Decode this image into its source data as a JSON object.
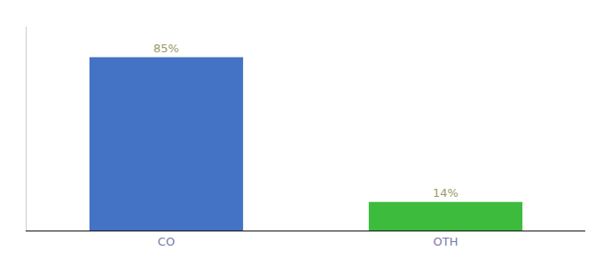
{
  "chart_data": {
    "type": "bar",
    "categories": [
      "CO",
      "OTH"
    ],
    "values": [
      85,
      14
    ],
    "value_labels": [
      "85%",
      "14%"
    ],
    "colors": [
      "#4472c4",
      "#3dbb3d"
    ],
    "ylim": [
      0,
      100
    ],
    "data_labels": true,
    "tick_labels": "x",
    "grid": false
  }
}
